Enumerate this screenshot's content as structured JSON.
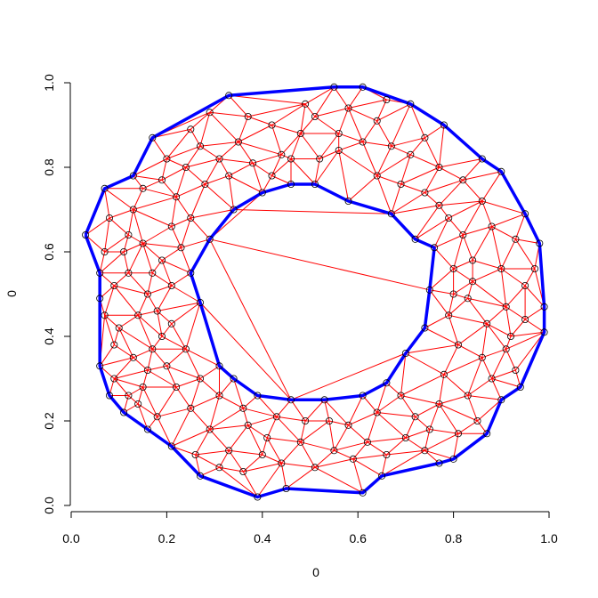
{
  "chart_data": {
    "type": "scatter",
    "title": "",
    "xlabel": "0",
    "ylabel": "0",
    "xlim": [
      0,
      1
    ],
    "ylim": [
      0,
      1
    ],
    "x_ticks": [
      "0.0",
      "0.2",
      "0.4",
      "0.6",
      "0.8",
      "1.0"
    ],
    "y_ticks": [
      "0.0",
      "0.2",
      "0.4",
      "0.6",
      "0.8",
      "1.0"
    ],
    "grid": false,
    "legend": "none",
    "colors": {
      "triangulation": "#ff0000",
      "boundary": "#0000ff",
      "points": "#000000"
    },
    "outer_boundary": [
      [
        0.03,
        0.64
      ],
      [
        0.07,
        0.75
      ],
      [
        0.13,
        0.78
      ],
      [
        0.17,
        0.87
      ],
      [
        0.33,
        0.97
      ],
      [
        0.55,
        0.99
      ],
      [
        0.61,
        0.99
      ],
      [
        0.71,
        0.95
      ],
      [
        0.78,
        0.9
      ],
      [
        0.86,
        0.82
      ],
      [
        0.9,
        0.79
      ],
      [
        0.95,
        0.69
      ],
      [
        0.98,
        0.62
      ],
      [
        0.99,
        0.47
      ],
      [
        0.99,
        0.41
      ],
      [
        0.94,
        0.28
      ],
      [
        0.9,
        0.25
      ],
      [
        0.87,
        0.17
      ],
      [
        0.8,
        0.11
      ],
      [
        0.77,
        0.1
      ],
      [
        0.65,
        0.07
      ],
      [
        0.61,
        0.03
      ],
      [
        0.45,
        0.04
      ],
      [
        0.39,
        0.02
      ],
      [
        0.27,
        0.07
      ],
      [
        0.21,
        0.14
      ],
      [
        0.11,
        0.22
      ],
      [
        0.08,
        0.26
      ],
      [
        0.06,
        0.33
      ],
      [
        0.06,
        0.49
      ],
      [
        0.06,
        0.55
      ],
      [
        0.03,
        0.64
      ]
    ],
    "inner_boundary": [
      [
        0.34,
        0.7
      ],
      [
        0.4,
        0.74
      ],
      [
        0.46,
        0.76
      ],
      [
        0.51,
        0.76
      ],
      [
        0.58,
        0.72
      ],
      [
        0.67,
        0.69
      ],
      [
        0.72,
        0.63
      ],
      [
        0.76,
        0.61
      ],
      [
        0.75,
        0.51
      ],
      [
        0.74,
        0.42
      ],
      [
        0.7,
        0.36
      ],
      [
        0.66,
        0.29
      ],
      [
        0.61,
        0.26
      ],
      [
        0.53,
        0.25
      ],
      [
        0.46,
        0.25
      ],
      [
        0.39,
        0.26
      ],
      [
        0.34,
        0.3
      ],
      [
        0.31,
        0.33
      ],
      [
        0.27,
        0.48
      ],
      [
        0.25,
        0.55
      ],
      [
        0.29,
        0.63
      ],
      [
        0.34,
        0.7
      ]
    ],
    "points": [
      [
        0.03,
        0.64
      ],
      [
        0.07,
        0.75
      ],
      [
        0.13,
        0.78
      ],
      [
        0.17,
        0.87
      ],
      [
        0.33,
        0.97
      ],
      [
        0.55,
        0.99
      ],
      [
        0.61,
        0.99
      ],
      [
        0.71,
        0.95
      ],
      [
        0.78,
        0.9
      ],
      [
        0.86,
        0.82
      ],
      [
        0.9,
        0.79
      ],
      [
        0.95,
        0.69
      ],
      [
        0.98,
        0.62
      ],
      [
        0.99,
        0.47
      ],
      [
        0.99,
        0.41
      ],
      [
        0.94,
        0.28
      ],
      [
        0.9,
        0.25
      ],
      [
        0.87,
        0.17
      ],
      [
        0.8,
        0.11
      ],
      [
        0.77,
        0.1
      ],
      [
        0.65,
        0.07
      ],
      [
        0.61,
        0.03
      ],
      [
        0.45,
        0.04
      ],
      [
        0.39,
        0.02
      ],
      [
        0.27,
        0.07
      ],
      [
        0.21,
        0.14
      ],
      [
        0.11,
        0.22
      ],
      [
        0.08,
        0.26
      ],
      [
        0.06,
        0.33
      ],
      [
        0.06,
        0.49
      ],
      [
        0.06,
        0.55
      ],
      [
        0.34,
        0.7
      ],
      [
        0.4,
        0.74
      ],
      [
        0.46,
        0.76
      ],
      [
        0.51,
        0.76
      ],
      [
        0.58,
        0.72
      ],
      [
        0.67,
        0.69
      ],
      [
        0.72,
        0.63
      ],
      [
        0.76,
        0.61
      ],
      [
        0.75,
        0.51
      ],
      [
        0.74,
        0.42
      ],
      [
        0.7,
        0.36
      ],
      [
        0.66,
        0.29
      ],
      [
        0.61,
        0.26
      ],
      [
        0.53,
        0.25
      ],
      [
        0.46,
        0.25
      ],
      [
        0.39,
        0.26
      ],
      [
        0.34,
        0.3
      ],
      [
        0.31,
        0.33
      ],
      [
        0.27,
        0.48
      ],
      [
        0.25,
        0.55
      ],
      [
        0.29,
        0.63
      ],
      [
        0.1,
        0.42
      ],
      [
        0.12,
        0.55
      ],
      [
        0.11,
        0.6
      ],
      [
        0.13,
        0.7
      ],
      [
        0.15,
        0.62
      ],
      [
        0.16,
        0.5
      ],
      [
        0.18,
        0.46
      ],
      [
        0.19,
        0.58
      ],
      [
        0.21,
        0.66
      ],
      [
        0.22,
        0.73
      ],
      [
        0.24,
        0.8
      ],
      [
        0.2,
        0.82
      ],
      [
        0.27,
        0.85
      ],
      [
        0.28,
        0.76
      ],
      [
        0.31,
        0.82
      ],
      [
        0.35,
        0.86
      ],
      [
        0.37,
        0.92
      ],
      [
        0.42,
        0.9
      ],
      [
        0.44,
        0.83
      ],
      [
        0.48,
        0.88
      ],
      [
        0.51,
        0.92
      ],
      [
        0.56,
        0.88
      ],
      [
        0.61,
        0.86
      ],
      [
        0.64,
        0.91
      ],
      [
        0.67,
        0.85
      ],
      [
        0.71,
        0.83
      ],
      [
        0.74,
        0.87
      ],
      [
        0.77,
        0.8
      ],
      [
        0.82,
        0.77
      ],
      [
        0.86,
        0.72
      ],
      [
        0.88,
        0.66
      ],
      [
        0.82,
        0.64
      ],
      [
        0.79,
        0.68
      ],
      [
        0.84,
        0.58
      ],
      [
        0.9,
        0.56
      ],
      [
        0.93,
        0.63
      ],
      [
        0.95,
        0.52
      ],
      [
        0.91,
        0.47
      ],
      [
        0.87,
        0.43
      ],
      [
        0.83,
        0.49
      ],
      [
        0.8,
        0.56
      ],
      [
        0.79,
        0.45
      ],
      [
        0.81,
        0.38
      ],
      [
        0.86,
        0.35
      ],
      [
        0.91,
        0.37
      ],
      [
        0.95,
        0.44
      ],
      [
        0.88,
        0.3
      ],
      [
        0.83,
        0.26
      ],
      [
        0.78,
        0.31
      ],
      [
        0.77,
        0.24
      ],
      [
        0.72,
        0.21
      ],
      [
        0.7,
        0.16
      ],
      [
        0.74,
        0.13
      ],
      [
        0.66,
        0.12
      ],
      [
        0.62,
        0.15
      ],
      [
        0.58,
        0.19
      ],
      [
        0.55,
        0.13
      ],
      [
        0.51,
        0.09
      ],
      [
        0.48,
        0.15
      ],
      [
        0.44,
        0.1
      ],
      [
        0.41,
        0.16
      ],
      [
        0.37,
        0.19
      ],
      [
        0.33,
        0.13
      ],
      [
        0.29,
        0.18
      ],
      [
        0.25,
        0.23
      ],
      [
        0.22,
        0.28
      ],
      [
        0.18,
        0.21
      ],
      [
        0.15,
        0.28
      ],
      [
        0.13,
        0.35
      ],
      [
        0.17,
        0.37
      ],
      [
        0.2,
        0.33
      ],
      [
        0.24,
        0.37
      ],
      [
        0.21,
        0.43
      ],
      [
        0.14,
        0.45
      ],
      [
        0.09,
        0.3
      ],
      [
        0.12,
        0.26
      ],
      [
        0.36,
        0.23
      ],
      [
        0.31,
        0.26
      ],
      [
        0.27,
        0.3
      ],
      [
        0.56,
        0.84
      ],
      [
        0.52,
        0.82
      ],
      [
        0.38,
        0.81
      ],
      [
        0.33,
        0.78
      ],
      [
        0.42,
        0.78
      ],
      [
        0.25,
        0.68
      ],
      [
        0.23,
        0.61
      ],
      [
        0.21,
        0.52
      ],
      [
        0.17,
        0.55
      ],
      [
        0.12,
        0.64
      ],
      [
        0.08,
        0.68
      ],
      [
        0.09,
        0.52
      ],
      [
        0.09,
        0.38
      ],
      [
        0.64,
        0.78
      ],
      [
        0.69,
        0.76
      ],
      [
        0.74,
        0.74
      ],
      [
        0.77,
        0.71
      ],
      [
        0.8,
        0.5
      ],
      [
        0.84,
        0.53
      ],
      [
        0.92,
        0.4
      ],
      [
        0.97,
        0.56
      ],
      [
        0.93,
        0.32
      ],
      [
        0.85,
        0.2
      ],
      [
        0.81,
        0.17
      ],
      [
        0.75,
        0.18
      ],
      [
        0.69,
        0.26
      ],
      [
        0.64,
        0.22
      ],
      [
        0.59,
        0.11
      ],
      [
        0.54,
        0.2
      ],
      [
        0.49,
        0.2
      ],
      [
        0.43,
        0.21
      ],
      [
        0.4,
        0.12
      ],
      [
        0.36,
        0.08
      ],
      [
        0.31,
        0.09
      ],
      [
        0.26,
        0.12
      ],
      [
        0.16,
        0.18
      ],
      [
        0.14,
        0.24
      ],
      [
        0.19,
        0.4
      ],
      [
        0.16,
        0.32
      ],
      [
        0.46,
        0.82
      ],
      [
        0.49,
        0.95
      ],
      [
        0.58,
        0.94
      ],
      [
        0.66,
        0.96
      ],
      [
        0.29,
        0.93
      ],
      [
        0.25,
        0.89
      ],
      [
        0.19,
        0.77
      ],
      [
        0.15,
        0.75
      ],
      [
        0.07,
        0.6
      ],
      [
        0.07,
        0.45
      ]
    ],
    "triangulation_edges_drawn": true
  }
}
